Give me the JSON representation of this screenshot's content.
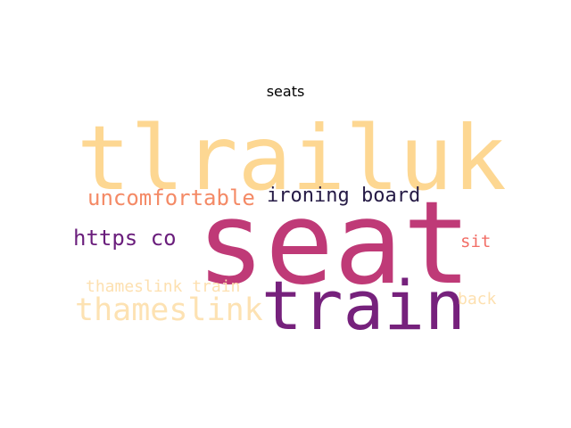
{
  "title": "seats",
  "words": [
    {
      "text": "tlrailuk",
      "color": "#fdd792"
    },
    {
      "text": "seat",
      "color": "#bf3a77"
    },
    {
      "text": "train",
      "color": "#76217c"
    },
    {
      "text": "thameslink",
      "color": "#fde2b3"
    },
    {
      "text": "uncomfortable",
      "color": "#f48a66"
    },
    {
      "text": "ironing board",
      "color": "#251a45"
    },
    {
      "text": "https co",
      "color": "#6a1e7c"
    },
    {
      "text": "sit",
      "color": "#f26e66"
    },
    {
      "text": "thameslink train",
      "color": "#fde0b0"
    },
    {
      "text": "back",
      "color": "#fde0b0"
    }
  ]
}
